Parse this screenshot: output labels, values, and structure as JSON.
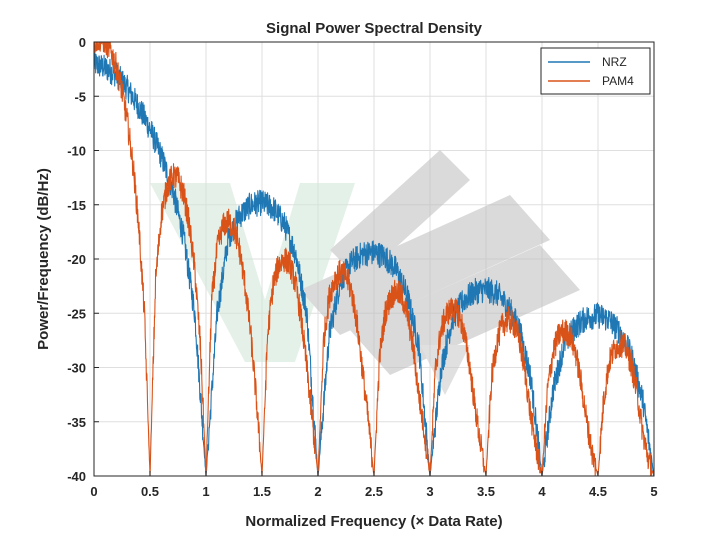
{
  "chart_data": {
    "type": "line",
    "title": "Signal Power Spectral Density",
    "xlabel": "Normalized Frequency (× Data Rate)",
    "ylabel": "Power/Frequency (dB/Hz)",
    "xlim": [
      0,
      5
    ],
    "ylim": [
      -40,
      0
    ],
    "x_ticks": [
      0,
      0.5,
      1,
      1.5,
      2,
      2.5,
      3,
      3.5,
      4,
      4.5,
      5
    ],
    "x_tick_labels": [
      "0",
      "0.5",
      "1",
      "1.5",
      "2",
      "2.5",
      "3",
      "3.5",
      "4",
      "4.5",
      "5"
    ],
    "y_ticks": [
      0,
      -5,
      -10,
      -15,
      -20,
      -25,
      -30,
      -35,
      -40
    ],
    "y_tick_labels": [
      "0",
      "-5",
      "-10",
      "-15",
      "-20",
      "-25",
      "-30",
      "-35",
      "-40"
    ],
    "grid": true,
    "legend_position": "top-right",
    "series": [
      {
        "name": "NRZ",
        "color": "#1f77b4",
        "noise_band_db": 1.2,
        "nulls": [
          1,
          2,
          3,
          4,
          5
        ],
        "x": [
          0,
          0.1,
          0.2,
          0.3,
          0.4,
          0.5,
          0.6,
          0.7,
          0.8,
          0.9,
          1.0,
          1.1,
          1.2,
          1.3,
          1.4,
          1.5,
          1.6,
          1.7,
          1.8,
          1.9,
          2.0,
          2.1,
          2.2,
          2.3,
          2.4,
          2.5,
          2.6,
          2.7,
          2.8,
          2.9,
          3.0,
          3.1,
          3.2,
          3.3,
          3.4,
          3.5,
          3.6,
          3.7,
          3.8,
          3.9,
          4.0,
          4.1,
          4.2,
          4.3,
          4.4,
          4.5,
          4.6,
          4.7,
          4.8,
          4.9,
          5.0
        ],
        "y": [
          -2,
          -2.4,
          -3.0,
          -4.3,
          -6.0,
          -8.0,
          -10.5,
          -13.5,
          -18,
          -25,
          -40,
          -25,
          -18,
          -16,
          -15,
          -14.8,
          -15.3,
          -16.8,
          -19.5,
          -25,
          -40,
          -27,
          -22,
          -20.3,
          -19.5,
          -19.4,
          -19.8,
          -21,
          -23.5,
          -28,
          -40,
          -30,
          -25.5,
          -23.8,
          -23,
          -22.8,
          -23.2,
          -24.4,
          -26.5,
          -31,
          -40,
          -32,
          -27.8,
          -26.2,
          -25.4,
          -25.2,
          -25.6,
          -26.8,
          -29,
          -33,
          -40
        ]
      },
      {
        "name": "PAM4",
        "color": "#d95319",
        "noise_band_db": 1.2,
        "nulls": [
          0.5,
          1,
          1.5,
          2,
          2.5,
          3,
          3.5,
          4,
          4.5,
          5
        ],
        "x": [
          0,
          0.05,
          0.1,
          0.15,
          0.2,
          0.25,
          0.3,
          0.35,
          0.4,
          0.45,
          0.5,
          0.55,
          0.6,
          0.65,
          0.7,
          0.75,
          0.8,
          0.85,
          0.9,
          0.95,
          1.0,
          1.05,
          1.1,
          1.15,
          1.2,
          1.25,
          1.3,
          1.35,
          1.4,
          1.45,
          1.5,
          1.55,
          1.6,
          1.65,
          1.7,
          1.75,
          1.8,
          1.85,
          1.9,
          1.95,
          2.0,
          2.05,
          2.1,
          2.15,
          2.2,
          2.25,
          2.3,
          2.35,
          2.4,
          2.45,
          2.5,
          2.55,
          2.6,
          2.65,
          2.7,
          2.75,
          2.8,
          2.85,
          2.9,
          2.95,
          3.0,
          3.05,
          3.1,
          3.15,
          3.2,
          3.25,
          3.3,
          3.35,
          3.4,
          3.45,
          3.5,
          3.55,
          3.6,
          3.65,
          3.7,
          3.75,
          3.8,
          3.85,
          3.9,
          3.95,
          4.0,
          4.05,
          4.1,
          4.15,
          4.2,
          4.25,
          4.3,
          4.35,
          4.4,
          4.45,
          4.5,
          4.55,
          4.6,
          4.65,
          4.7,
          4.75,
          4.8,
          4.85,
          4.9,
          4.95,
          5.0
        ],
        "y": [
          0,
          0.3,
          0,
          -0.8,
          -2.3,
          -4.5,
          -7.5,
          -11.5,
          -17,
          -25,
          -40,
          -22,
          -16,
          -13.5,
          -12.3,
          -12.6,
          -14,
          -16.8,
          -21,
          -28,
          -40,
          -24,
          -19,
          -17,
          -16.5,
          -17.2,
          -19.2,
          -22.5,
          -27,
          -33,
          -40,
          -27,
          -22.3,
          -20.5,
          -20,
          -20.5,
          -22.3,
          -25.5,
          -30,
          -35,
          -40,
          -27.5,
          -23.5,
          -21.8,
          -21.2,
          -21.6,
          -23,
          -26,
          -30.5,
          -35,
          -40,
          -29,
          -25,
          -23.5,
          -23,
          -23.5,
          -25.2,
          -28.2,
          -32.5,
          -36,
          -40,
          -30,
          -26.5,
          -25,
          -24.6,
          -25,
          -26.6,
          -29.5,
          -33.5,
          -37,
          -40,
          -31,
          -27.5,
          -26,
          -25.6,
          -26,
          -27.6,
          -30.5,
          -34.5,
          -37.5,
          -40,
          -32,
          -28.5,
          -27,
          -26.6,
          -27,
          -28.6,
          -31.5,
          -35,
          -38,
          -40,
          -33,
          -29.5,
          -28.2,
          -27.8,
          -28.2,
          -29.8,
          -32.5,
          -36,
          -38.5,
          -40
        ]
      }
    ]
  }
}
